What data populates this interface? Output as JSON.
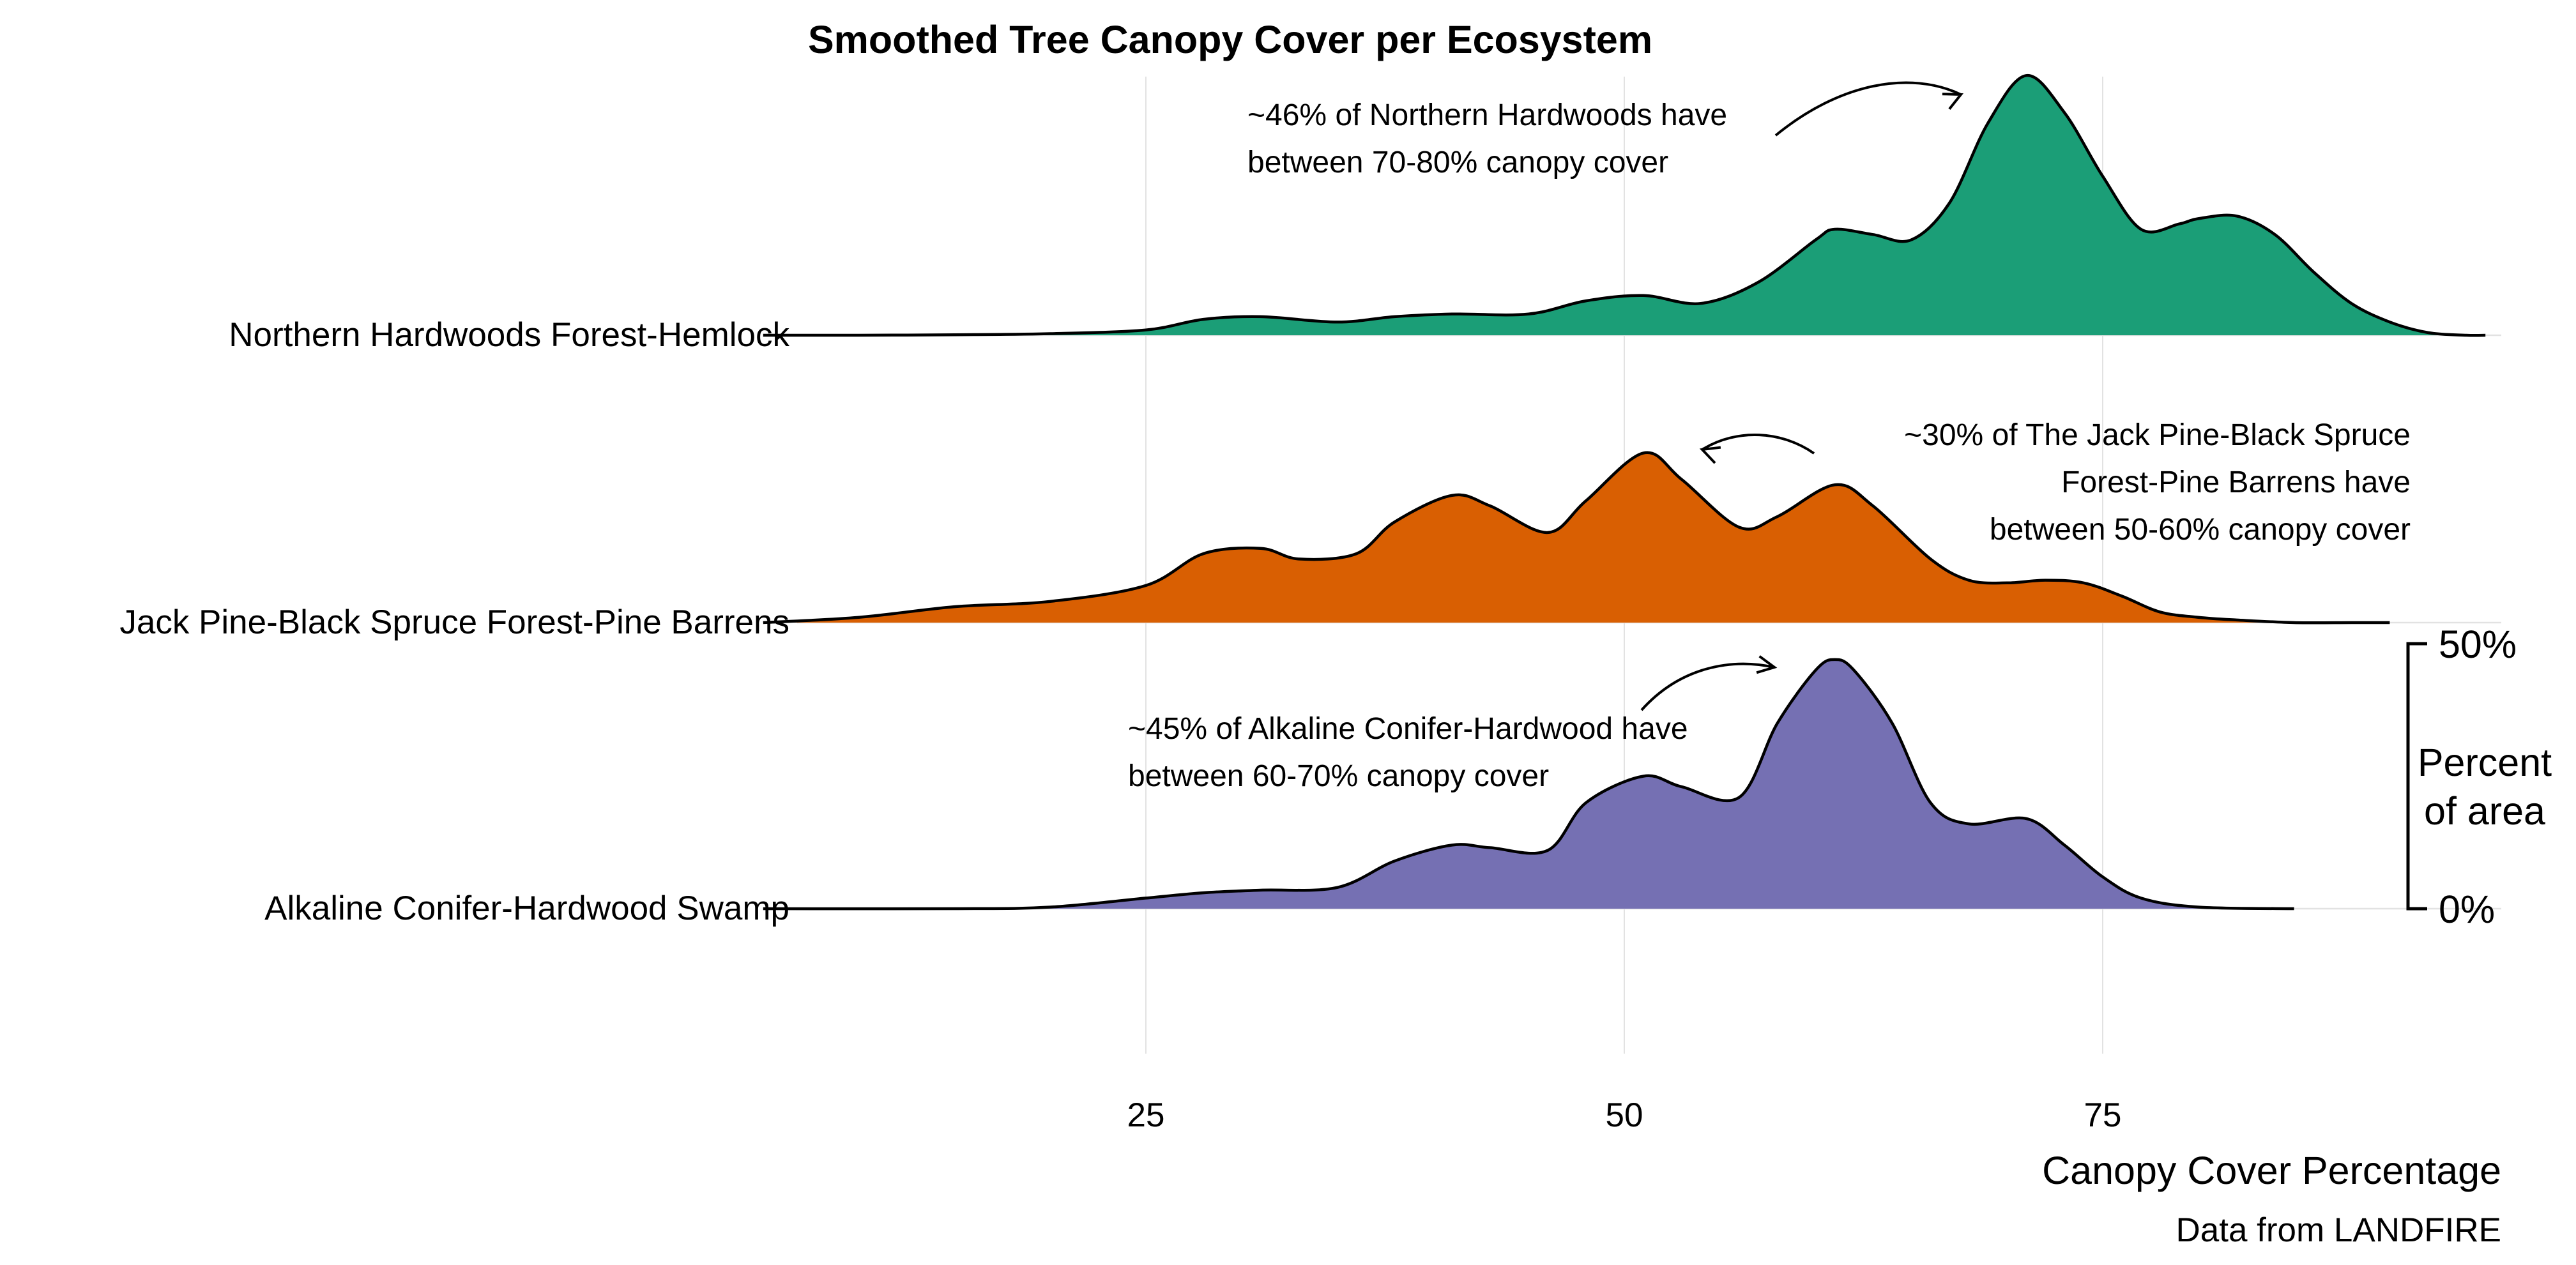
{
  "chart_data": {
    "type": "area",
    "subtype": "ridgeline-density",
    "title": "Smoothed Tree Canopy Cover per Ecosystem",
    "xlabel": "Canopy Cover Percentage",
    "caption": "Data from LANDFIRE",
    "xlim": [
      0,
      110
    ],
    "x_ticks": [
      25,
      50,
      75
    ],
    "x_tick_labels": [
      "25",
      "50",
      "75"
    ],
    "grid": "vertical",
    "scale_bar": {
      "title_lines": [
        "Percent",
        "of area"
      ],
      "top_label": "50%",
      "bottom_label": "0%",
      "top_value": 50,
      "bottom_value": 0
    },
    "series": [
      {
        "name": "Northern Hardwoods Forest-Hemlock",
        "color": "#1b9e77",
        "x": [
          5,
          10,
          15,
          20,
          25,
          28,
          31,
          35,
          38,
          41,
          45,
          48,
          51,
          54,
          57,
          60,
          61,
          63,
          65,
          67,
          69,
          71,
          73,
          75,
          77,
          79,
          80,
          82,
          84,
          86,
          88,
          90,
          92,
          94,
          95
        ],
        "y": [
          0,
          0,
          0.1,
          0.3,
          1,
          3,
          3.5,
          2.5,
          3.5,
          4,
          4,
          6.5,
          7.5,
          6,
          10,
          18,
          20,
          19,
          18,
          25,
          40,
          49,
          42,
          30,
          20,
          21,
          22,
          22.5,
          19,
          12,
          6,
          2.5,
          0.5,
          0,
          0
        ]
      },
      {
        "name": "Jack Pine-Black Spruce Forest-Pine Barrens",
        "color": "#d95f02",
        "x": [
          5,
          10,
          15,
          20,
          25,
          28,
          31,
          33,
          36,
          38,
          41,
          43,
          46,
          48,
          51,
          53,
          56,
          58,
          61,
          63,
          66,
          68,
          70,
          72,
          74,
          76,
          78,
          80,
          82,
          85,
          88,
          90
        ],
        "y": [
          0,
          1,
          3,
          4,
          7,
          13,
          14,
          12,
          13,
          19,
          24,
          22,
          17,
          23,
          32,
          27,
          18,
          20,
          26,
          22,
          12,
          8,
          7.5,
          8,
          7.5,
          5,
          2,
          1,
          0.5,
          0,
          0,
          0
        ]
      },
      {
        "name": "Alkaline Conifer-Hardwood Swamp",
        "color": "#7570b3",
        "x": [
          5,
          15,
          20,
          25,
          28,
          31,
          35,
          38,
          41,
          43,
          46,
          48,
          51,
          53,
          56,
          58,
          60,
          61,
          62,
          64,
          66,
          68,
          71,
          73,
          75,
          77,
          80,
          85
        ],
        "y": [
          0,
          0,
          0.3,
          2,
          3,
          3.5,
          4,
          9,
          12,
          11.5,
          11,
          20,
          25,
          23,
          21,
          35,
          45,
          47,
          45,
          35,
          20,
          16,
          17,
          12,
          6,
          2,
          0.3,
          0
        ]
      }
    ],
    "annotations": [
      {
        "lines": [
          "~46% of Northern Hardwoods have",
          "between 70-80% canopy cover"
        ]
      },
      {
        "lines": [
          "~30% of The Jack Pine-Black Spruce",
          "Forest-Pine Barrens have",
          "between 50-60% canopy cover"
        ]
      },
      {
        "lines": [
          "~45% of Alkaline Conifer-Hardwood have",
          "between 60-70% canopy cover"
        ]
      }
    ]
  }
}
